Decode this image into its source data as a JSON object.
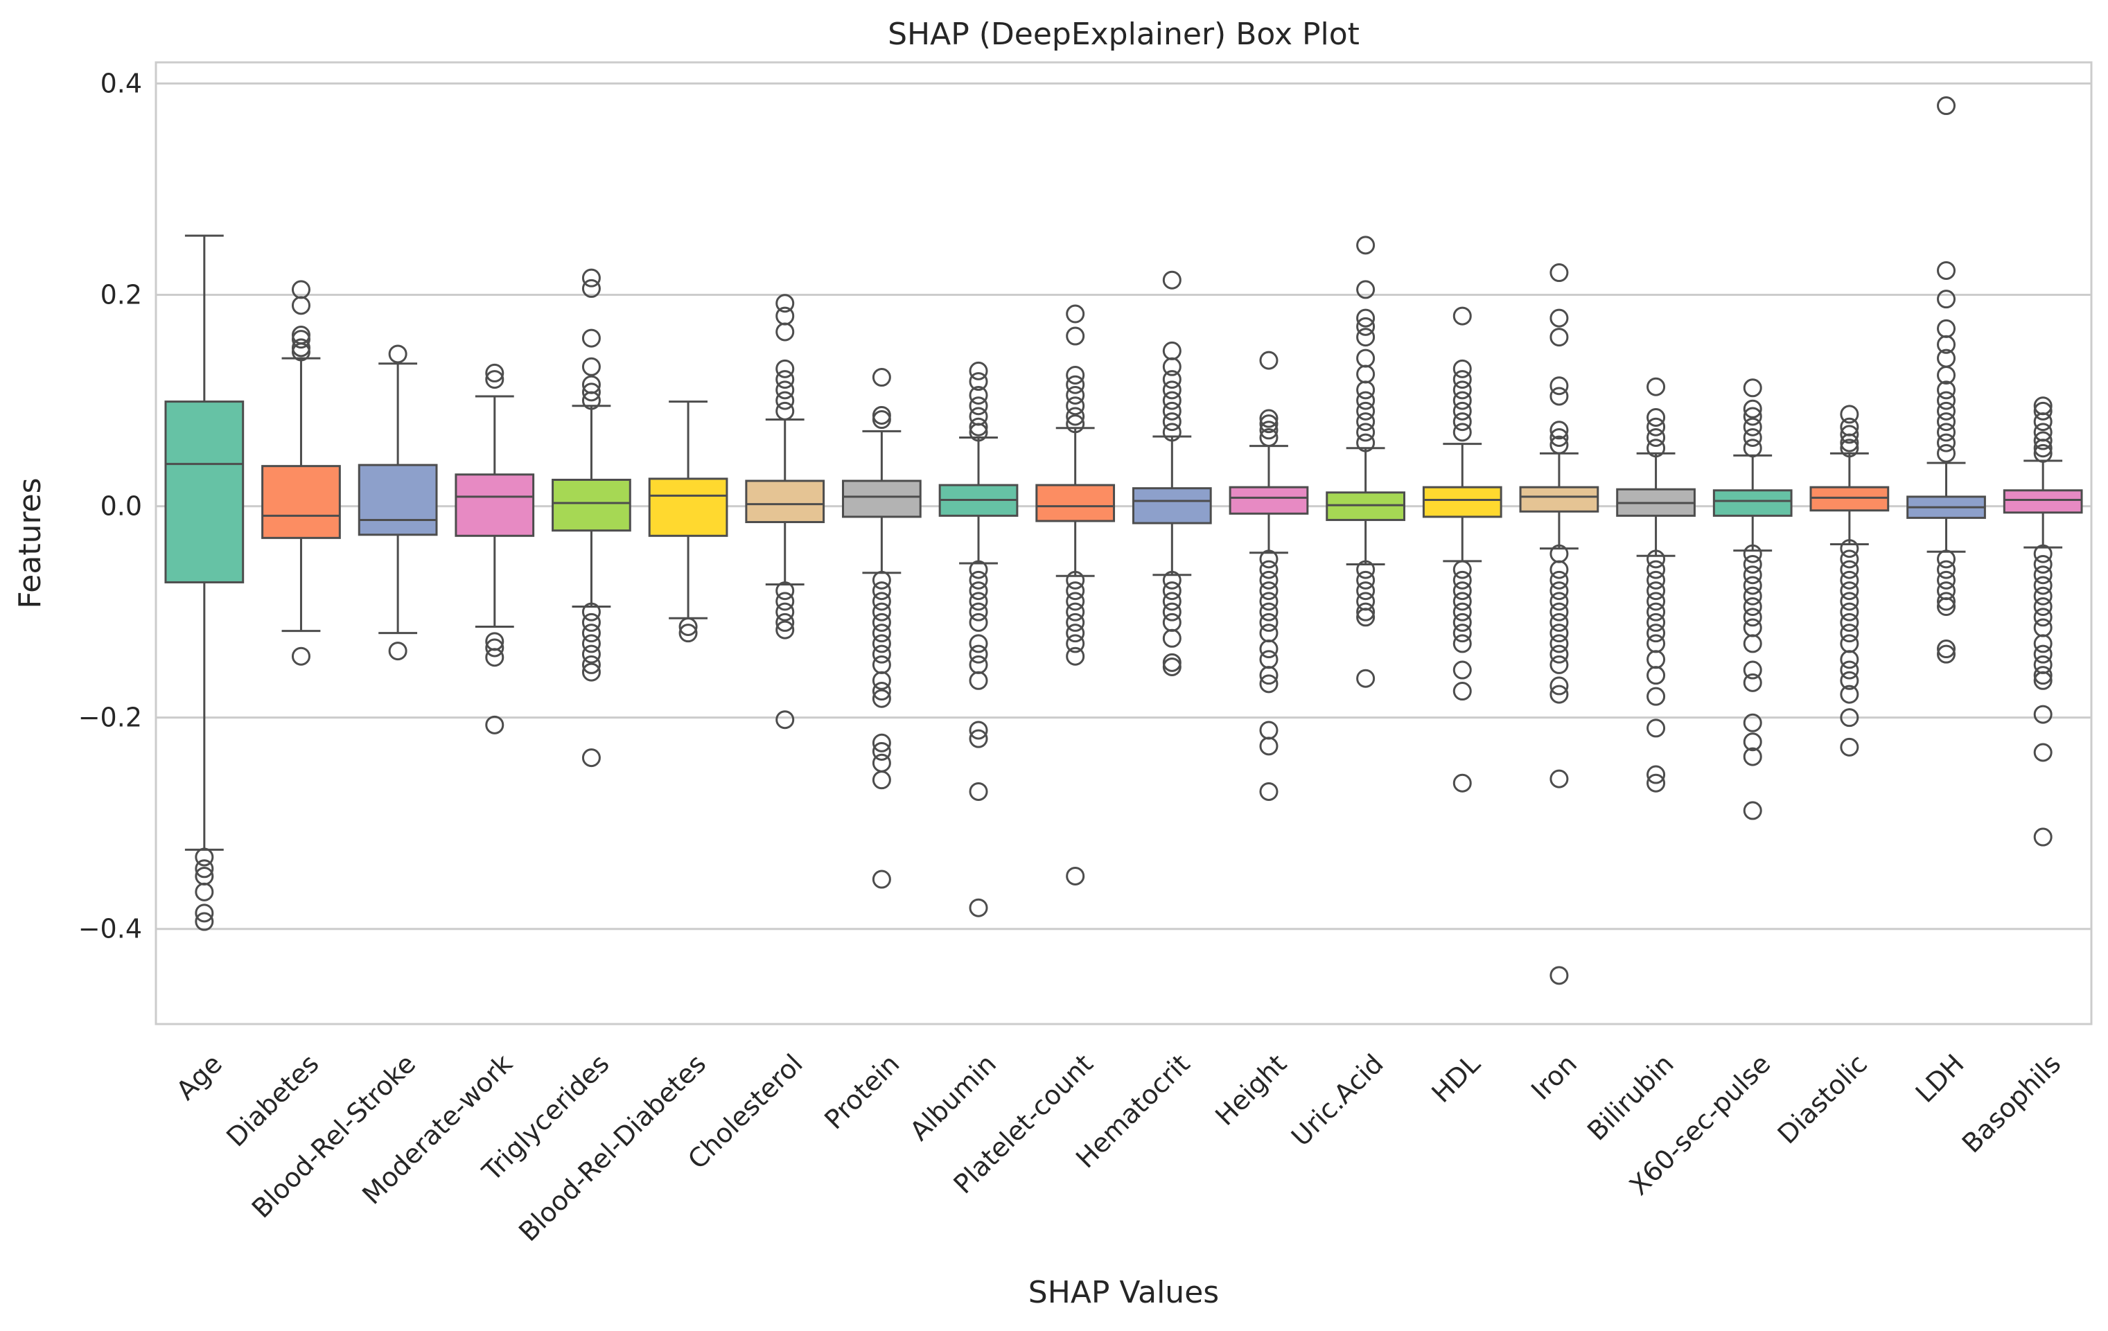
{
  "chart_data": {
    "type": "box",
    "title": "SHAP (DeepExplainer) Box Plot",
    "xlabel": "SHAP Values",
    "ylabel": "Features",
    "ylim": [
      -0.49,
      0.42
    ],
    "yticks": [
      -0.4,
      -0.2,
      0.0,
      0.2,
      0.4
    ],
    "ytick_labels": [
      "−0.4",
      "−0.2",
      "0.0",
      "0.2",
      "0.4"
    ],
    "grid": "horizontal",
    "colors": {
      "palette": [
        "#66c2a5",
        "#fc8d62",
        "#8da0cb",
        "#e78ac3",
        "#a6d854",
        "#ffd92f",
        "#e5c494",
        "#b3b3b3"
      ],
      "line": "#4d4d4d",
      "grid": "#cccccc",
      "frame": "#cccccc"
    },
    "series": [
      {
        "name": "Age",
        "whisker_low": -0.325,
        "q1": -0.072,
        "median": 0.04,
        "q3": 0.099,
        "whisker_high": 0.256,
        "fliers": [
          -0.332,
          -0.343,
          -0.35,
          -0.365,
          -0.385,
          -0.393
        ]
      },
      {
        "name": "Diabetes",
        "whisker_low": -0.118,
        "q1": -0.03,
        "median": -0.009,
        "q3": 0.038,
        "whisker_high": 0.14,
        "fliers": [
          0.205,
          0.19,
          0.162,
          0.158,
          0.15,
          0.146,
          -0.142
        ]
      },
      {
        "name": "Blood-Rel-Stroke",
        "whisker_low": -0.12,
        "q1": -0.027,
        "median": -0.013,
        "q3": 0.039,
        "whisker_high": 0.135,
        "fliers": [
          0.144,
          -0.137
        ]
      },
      {
        "name": "Moderate-work",
        "whisker_low": -0.114,
        "q1": -0.028,
        "median": 0.009,
        "q3": 0.03,
        "whisker_high": 0.104,
        "fliers": [
          0.126,
          0.12,
          -0.128,
          -0.134,
          -0.143,
          -0.207
        ]
      },
      {
        "name": "Triglycerides",
        "whisker_low": -0.095,
        "q1": -0.023,
        "median": 0.003,
        "q3": 0.025,
        "whisker_high": 0.095,
        "fliers": [
          0.216,
          0.206,
          0.159,
          0.132,
          0.115,
          0.108,
          0.1,
          -0.1,
          -0.11,
          -0.12,
          -0.13,
          -0.14,
          -0.15,
          -0.157,
          -0.238
        ]
      },
      {
        "name": "Blood-Rel-Diabetes",
        "whisker_low": -0.106,
        "q1": -0.028,
        "median": 0.01,
        "q3": 0.026,
        "whisker_high": 0.099,
        "fliers": [
          -0.114,
          -0.12
        ]
      },
      {
        "name": "Cholesterol",
        "whisker_low": -0.074,
        "q1": -0.015,
        "median": 0.002,
        "q3": 0.024,
        "whisker_high": 0.082,
        "fliers": [
          0.192,
          0.18,
          0.165,
          0.13,
          0.12,
          0.11,
          0.1,
          0.09,
          -0.08,
          -0.09,
          -0.1,
          -0.11,
          -0.117,
          -0.202
        ]
      },
      {
        "name": "Protein",
        "whisker_low": -0.063,
        "q1": -0.01,
        "median": 0.009,
        "q3": 0.024,
        "whisker_high": 0.071,
        "fliers": [
          0.122,
          0.086,
          0.082,
          -0.07,
          -0.08,
          -0.09,
          -0.1,
          -0.11,
          -0.12,
          -0.13,
          -0.14,
          -0.15,
          -0.165,
          -0.175,
          -0.182,
          -0.224,
          -0.232,
          -0.243,
          -0.259,
          -0.353
        ]
      },
      {
        "name": "Albumin",
        "whisker_low": -0.054,
        "q1": -0.009,
        "median": 0.006,
        "q3": 0.02,
        "whisker_high": 0.065,
        "fliers": [
          0.128,
          0.118,
          0.105,
          0.095,
          0.085,
          0.075,
          0.07,
          -0.06,
          -0.07,
          -0.08,
          -0.09,
          -0.1,
          -0.11,
          -0.13,
          -0.14,
          -0.15,
          -0.165,
          -0.212,
          -0.22,
          -0.27,
          -0.38
        ]
      },
      {
        "name": "Platelet-count",
        "whisker_low": -0.066,
        "q1": -0.014,
        "median": 0.0,
        "q3": 0.02,
        "whisker_high": 0.074,
        "fliers": [
          0.182,
          0.161,
          0.124,
          0.115,
          0.105,
          0.095,
          0.085,
          0.078,
          -0.07,
          -0.08,
          -0.09,
          -0.1,
          -0.11,
          -0.12,
          -0.13,
          -0.142,
          -0.35
        ]
      },
      {
        "name": "Hematocrit",
        "whisker_low": -0.065,
        "q1": -0.016,
        "median": 0.005,
        "q3": 0.017,
        "whisker_high": 0.066,
        "fliers": [
          0.214,
          0.147,
          0.132,
          0.12,
          0.11,
          0.1,
          0.09,
          0.08,
          0.07,
          -0.07,
          -0.08,
          -0.09,
          -0.1,
          -0.11,
          -0.125,
          -0.148,
          -0.152
        ]
      },
      {
        "name": "Height",
        "whisker_low": -0.044,
        "q1": -0.007,
        "median": 0.008,
        "q3": 0.018,
        "whisker_high": 0.057,
        "fliers": [
          0.138,
          0.083,
          0.078,
          0.072,
          0.065,
          -0.05,
          -0.06,
          -0.07,
          -0.08,
          -0.09,
          -0.1,
          -0.11,
          -0.12,
          -0.135,
          -0.145,
          -0.16,
          -0.168,
          -0.212,
          -0.227,
          -0.27
        ]
      },
      {
        "name": "Uric.Acid",
        "whisker_low": -0.055,
        "q1": -0.013,
        "median": 0.001,
        "q3": 0.013,
        "whisker_high": 0.055,
        "fliers": [
          0.247,
          0.205,
          0.178,
          0.17,
          0.16,
          0.14,
          0.125,
          0.11,
          0.1,
          0.09,
          0.08,
          0.07,
          0.06,
          -0.06,
          -0.07,
          -0.08,
          -0.09,
          -0.1,
          -0.105,
          -0.163
        ]
      },
      {
        "name": "HDL",
        "whisker_low": -0.052,
        "q1": -0.01,
        "median": 0.006,
        "q3": 0.018,
        "whisker_high": 0.059,
        "fliers": [
          0.18,
          0.13,
          0.12,
          0.11,
          0.1,
          0.09,
          0.08,
          0.07,
          -0.06,
          -0.07,
          -0.08,
          -0.09,
          -0.1,
          -0.11,
          -0.12,
          -0.13,
          -0.155,
          -0.175,
          -0.262
        ]
      },
      {
        "name": "Iron",
        "whisker_low": -0.04,
        "q1": -0.005,
        "median": 0.009,
        "q3": 0.018,
        "whisker_high": 0.05,
        "fliers": [
          0.221,
          0.178,
          0.16,
          0.114,
          0.104,
          0.072,
          0.065,
          0.058,
          -0.045,
          -0.06,
          -0.07,
          -0.08,
          -0.09,
          -0.1,
          -0.11,
          -0.12,
          -0.13,
          -0.14,
          -0.15,
          -0.17,
          -0.178,
          -0.258,
          -0.444
        ]
      },
      {
        "name": "Bilirubin",
        "whisker_low": -0.047,
        "q1": -0.009,
        "median": 0.003,
        "q3": 0.016,
        "whisker_high": 0.05,
        "fliers": [
          0.113,
          0.084,
          0.075,
          0.065,
          0.055,
          -0.05,
          -0.06,
          -0.07,
          -0.08,
          -0.09,
          -0.1,
          -0.11,
          -0.12,
          -0.13,
          -0.145,
          -0.16,
          -0.18,
          -0.21,
          -0.254,
          -0.262
        ]
      },
      {
        "name": "X60-sec-pulse",
        "whisker_low": -0.042,
        "q1": -0.009,
        "median": 0.005,
        "q3": 0.015,
        "whisker_high": 0.048,
        "fliers": [
          0.112,
          0.092,
          0.085,
          0.075,
          0.065,
          0.055,
          -0.045,
          -0.055,
          -0.065,
          -0.075,
          -0.085,
          -0.095,
          -0.105,
          -0.115,
          -0.13,
          -0.155,
          -0.167,
          -0.205,
          -0.223,
          -0.237,
          -0.288
        ]
      },
      {
        "name": "Diastolic",
        "whisker_low": -0.036,
        "q1": -0.004,
        "median": 0.008,
        "q3": 0.018,
        "whisker_high": 0.05,
        "fliers": [
          0.087,
          0.075,
          0.068,
          0.06,
          0.055,
          -0.04,
          -0.05,
          -0.06,
          -0.07,
          -0.08,
          -0.09,
          -0.1,
          -0.11,
          -0.12,
          -0.13,
          -0.145,
          -0.155,
          -0.165,
          -0.178,
          -0.2,
          -0.228
        ]
      },
      {
        "name": "LDH",
        "whisker_low": -0.043,
        "q1": -0.011,
        "median": -0.001,
        "q3": 0.009,
        "whisker_high": 0.041,
        "fliers": [
          0.379,
          0.223,
          0.196,
          0.168,
          0.153,
          0.14,
          0.124,
          0.11,
          0.1,
          0.09,
          0.08,
          0.07,
          0.06,
          0.05,
          -0.05,
          -0.06,
          -0.07,
          -0.08,
          -0.09,
          -0.095,
          -0.135,
          -0.14
        ]
      },
      {
        "name": "Basophils",
        "whisker_low": -0.039,
        "q1": -0.006,
        "median": 0.006,
        "q3": 0.015,
        "whisker_high": 0.043,
        "fliers": [
          0.095,
          0.09,
          0.08,
          0.07,
          0.062,
          0.055,
          0.05,
          -0.045,
          -0.055,
          -0.065,
          -0.075,
          -0.085,
          -0.095,
          -0.105,
          -0.115,
          -0.13,
          -0.14,
          -0.15,
          -0.16,
          -0.165,
          -0.197,
          -0.233,
          -0.313
        ]
      }
    ]
  }
}
